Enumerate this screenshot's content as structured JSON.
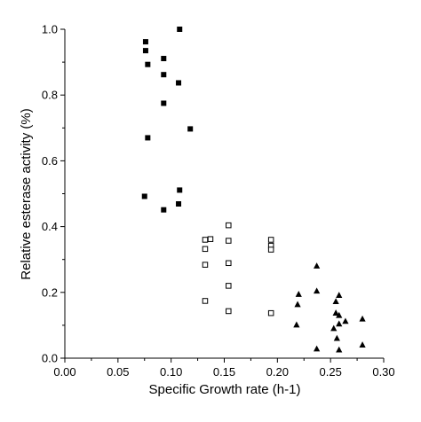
{
  "chart_data": {
    "type": "scatter",
    "title": "",
    "xlabel": "Specific Growth rate (h-1)",
    "ylabel": "Relative esterase activity (%)",
    "xlim": [
      0.0,
      0.3
    ],
    "ylim": [
      0.0,
      1.0
    ],
    "x_ticks": [
      "0.00",
      "0.05",
      "0.10",
      "0.15",
      "0.20",
      "0.25",
      "0.30"
    ],
    "y_ticks": [
      "0.0",
      "0.2",
      "0.4",
      "0.6",
      "0.8",
      "1.0"
    ],
    "grid": false,
    "legend": "none",
    "series": [
      {
        "marker": "filled-square",
        "color": "#000000",
        "points": [
          [
            0.076,
            0.962
          ],
          [
            0.076,
            0.935
          ],
          [
            0.078,
            0.893
          ],
          [
            0.093,
            0.911
          ],
          [
            0.093,
            0.862
          ],
          [
            0.107,
            0.837
          ],
          [
            0.108,
            1.0
          ],
          [
            0.093,
            0.775
          ],
          [
            0.118,
            0.697
          ],
          [
            0.078,
            0.67
          ],
          [
            0.075,
            0.492
          ],
          [
            0.108,
            0.511
          ],
          [
            0.107,
            0.469
          ],
          [
            0.093,
            0.451
          ]
        ]
      },
      {
        "marker": "open-square",
        "color": "#000000",
        "points": [
          [
            0.154,
            0.404
          ],
          [
            0.132,
            0.36
          ],
          [
            0.137,
            0.362
          ],
          [
            0.154,
            0.357
          ],
          [
            0.194,
            0.36
          ],
          [
            0.194,
            0.342
          ],
          [
            0.194,
            0.33
          ],
          [
            0.132,
            0.332
          ],
          [
            0.132,
            0.284
          ],
          [
            0.154,
            0.289
          ],
          [
            0.154,
            0.22
          ],
          [
            0.132,
            0.174
          ],
          [
            0.154,
            0.143
          ],
          [
            0.194,
            0.137
          ]
        ]
      },
      {
        "marker": "filled-triangle",
        "color": "#000000",
        "points": [
          [
            0.237,
            0.28
          ],
          [
            0.237,
            0.204
          ],
          [
            0.22,
            0.194
          ],
          [
            0.258,
            0.191
          ],
          [
            0.219,
            0.163
          ],
          [
            0.255,
            0.172
          ],
          [
            0.255,
            0.137
          ],
          [
            0.258,
            0.13
          ],
          [
            0.264,
            0.112
          ],
          [
            0.28,
            0.119
          ],
          [
            0.218,
            0.101
          ],
          [
            0.258,
            0.104
          ],
          [
            0.253,
            0.09
          ],
          [
            0.256,
            0.06
          ],
          [
            0.28,
            0.04
          ],
          [
            0.237,
            0.028
          ],
          [
            0.258,
            0.025
          ]
        ]
      }
    ]
  }
}
